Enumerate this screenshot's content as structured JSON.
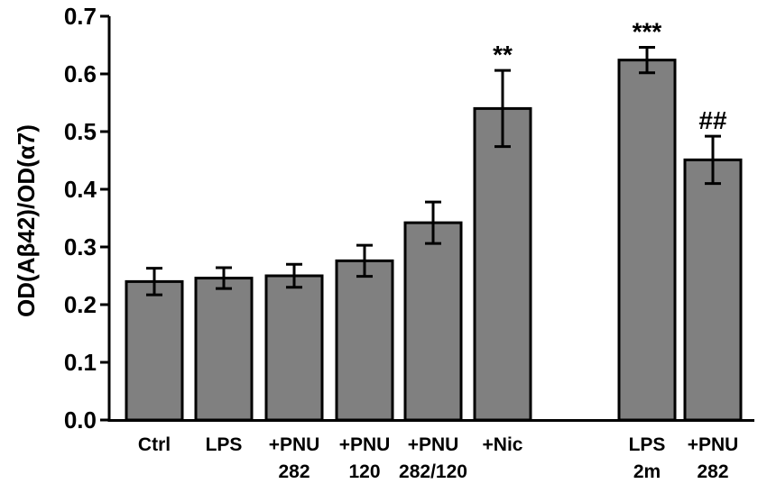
{
  "chart_data": {
    "type": "bar",
    "ylabel": "OD(Aβ42)/OD(α7)",
    "ylim": [
      0,
      0.7
    ],
    "yticks": [
      "0.0",
      "0.1",
      "0.2",
      "0.3",
      "0.4",
      "0.5",
      "0.6",
      "0.7"
    ],
    "bar_color": "#808080",
    "grid": false,
    "categories": [
      {
        "line1": "Ctrl",
        "line2": ""
      },
      {
        "line1": "LPS",
        "line2": ""
      },
      {
        "line1": "+PNU",
        "line2": "282"
      },
      {
        "line1": "+PNU",
        "line2": "120"
      },
      {
        "line1": "+PNU",
        "line2": "282/120"
      },
      {
        "line1": "+Nic",
        "line2": ""
      },
      {
        "line1": "LPS",
        "line2": "2m"
      },
      {
        "line1": "+PNU",
        "line2": "282"
      }
    ],
    "values": [
      0.24,
      0.246,
      0.25,
      0.276,
      0.342,
      0.54,
      0.624,
      0.451
    ],
    "errors": [
      0.023,
      0.018,
      0.02,
      0.027,
      0.036,
      0.066,
      0.022,
      0.041
    ],
    "annotations": [
      "",
      "",
      "",
      "",
      "",
      "**",
      "***",
      "##"
    ]
  }
}
